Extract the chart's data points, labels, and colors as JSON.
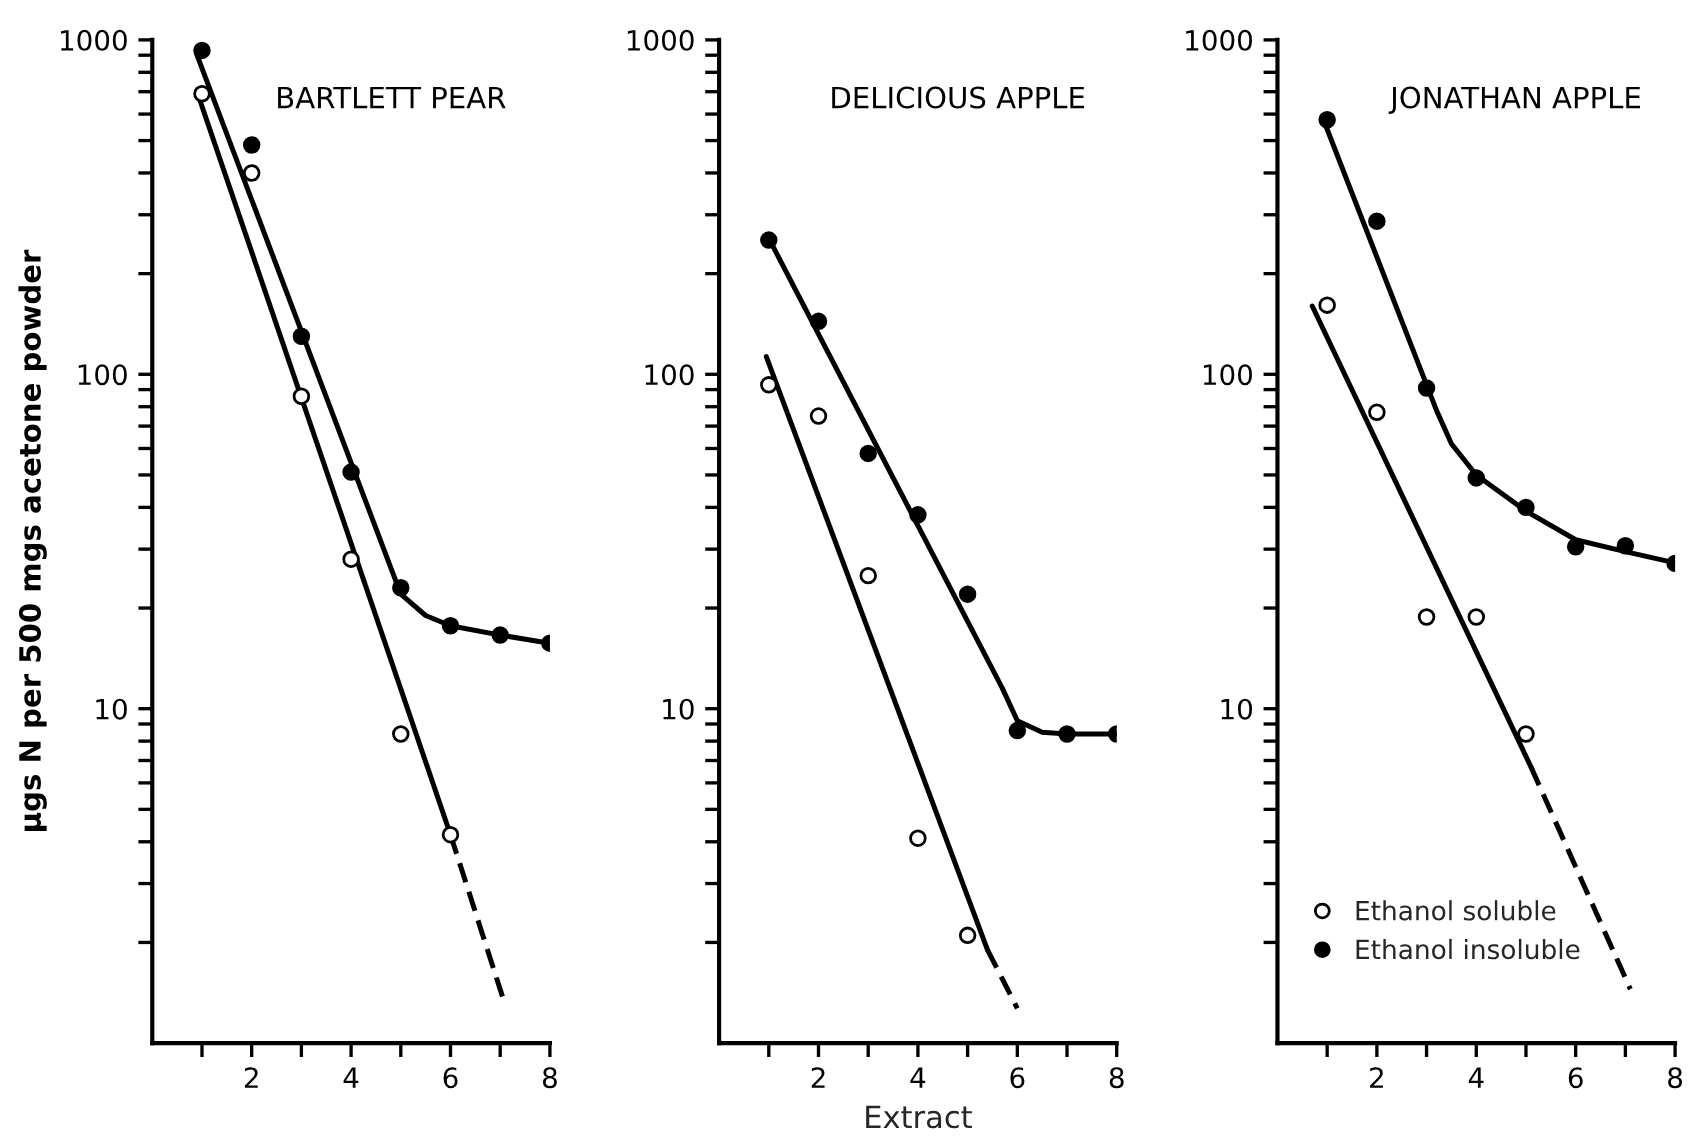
{
  "chart_data": [
    {
      "type": "scatter",
      "title": "BARTLETT PEAR",
      "ylabel": "μgs N per 500 mgs acetone powder",
      "log": "y",
      "xlim": [
        0,
        8
      ],
      "ylim": [
        1,
        1000
      ],
      "xticks": [
        {
          "value": 1,
          "label": null
        },
        2,
        {
          "value": 3,
          "label": null
        },
        4,
        {
          "value": 5,
          "label": null
        },
        6,
        {
          "value": 7,
          "label": null
        },
        8
      ],
      "yticks": [
        {
          "value": 2,
          "label": null
        },
        {
          "value": 3,
          "label": null
        },
        {
          "value": 4,
          "label": null
        },
        {
          "value": 5,
          "label": null
        },
        {
          "value": 6,
          "label": null
        },
        {
          "value": 7,
          "label": null
        },
        {
          "value": 8,
          "label": null
        },
        {
          "value": 9,
          "label": null
        },
        10,
        {
          "value": 20,
          "label": null
        },
        {
          "value": 30,
          "label": null
        },
        {
          "value": 40,
          "label": null
        },
        {
          "value": 50,
          "label": null
        },
        {
          "value": 60,
          "label": null
        },
        {
          "value": 70,
          "label": null
        },
        {
          "value": 80,
          "label": null
        },
        {
          "value": 90,
          "label": null
        },
        100,
        {
          "value": 200,
          "label": null
        },
        {
          "value": 300,
          "label": null
        },
        {
          "value": 400,
          "label": null
        },
        {
          "value": 500,
          "label": null
        },
        {
          "value": 600,
          "label": null
        },
        {
          "value": 700,
          "label": null
        },
        {
          "value": 800,
          "label": null
        },
        {
          "value": 900,
          "label": null
        },
        1000
      ],
      "grid": false,
      "legend": false,
      "series": [
        {
          "type": "line",
          "color": "#000000",
          "line_style": "solid",
          "marker": "none",
          "x": [
            0.9,
            5,
            5.5,
            6,
            7,
            8
          ],
          "values": [
            900,
            22,
            19,
            17.7,
            16.6,
            15.7
          ]
        },
        {
          "type": "line",
          "color": "#000000",
          "line_style": "solid",
          "marker": "none",
          "x": [
            0.9,
            6
          ],
          "values": [
            700,
            4.2
          ]
        },
        {
          "type": "line",
          "color": "#000000",
          "line_style": "dashed",
          "marker": "none",
          "x": [
            6,
            7.1
          ],
          "values": [
            4.2,
            1.3
          ]
        },
        {
          "color": "#ffffff",
          "marker": "circle",
          "x": [
            1,
            2,
            3,
            4,
            5,
            6
          ],
          "values": [
            690,
            400,
            86,
            28,
            8.4,
            4.2
          ]
        },
        {
          "color": "#000000",
          "marker": "circle",
          "x": [
            1,
            2,
            3,
            4,
            5,
            6,
            7,
            8
          ],
          "values": [
            930,
            485,
            130,
            51,
            23,
            17.7,
            16.6,
            15.7
          ]
        }
      ]
    },
    {
      "type": "scatter",
      "title": "DELICIOUS APPLE",
      "xlabel": "Extract",
      "log": "y",
      "xlim": [
        0,
        8
      ],
      "ylim": [
        1,
        1000
      ],
      "xticks": [
        {
          "value": 1,
          "label": null
        },
        2,
        {
          "value": 3,
          "label": null
        },
        4,
        {
          "value": 5,
          "label": null
        },
        6,
        {
          "value": 7,
          "label": null
        },
        8
      ],
      "yticks": [
        {
          "value": 2,
          "label": null
        },
        {
          "value": 3,
          "label": null
        },
        {
          "value": 4,
          "label": null
        },
        {
          "value": 5,
          "label": null
        },
        {
          "value": 6,
          "label": null
        },
        {
          "value": 7,
          "label": null
        },
        {
          "value": 8,
          "label": null
        },
        {
          "value": 9,
          "label": null
        },
        10,
        {
          "value": 20,
          "label": null
        },
        {
          "value": 30,
          "label": null
        },
        {
          "value": 40,
          "label": null
        },
        {
          "value": 50,
          "label": null
        },
        {
          "value": 60,
          "label": null
        },
        {
          "value": 70,
          "label": null
        },
        {
          "value": 80,
          "label": null
        },
        {
          "value": 90,
          "label": null
        },
        100,
        {
          "value": 200,
          "label": null
        },
        {
          "value": 300,
          "label": null
        },
        {
          "value": 400,
          "label": null
        },
        {
          "value": 500,
          "label": null
        },
        {
          "value": 600,
          "label": null
        },
        {
          "value": 700,
          "label": null
        },
        {
          "value": 800,
          "label": null
        },
        {
          "value": 900,
          "label": null
        },
        1000
      ],
      "grid": false,
      "legend": false,
      "series": [
        {
          "type": "line",
          "color": "#000000",
          "line_style": "solid",
          "marker": "none",
          "x": [
            1,
            5.7,
            6,
            6.5,
            7,
            8
          ],
          "values": [
            255,
            11.5,
            9.2,
            8.5,
            8.4,
            8.4
          ]
        },
        {
          "type": "line",
          "color": "#000000",
          "line_style": "solid",
          "marker": "none",
          "x": [
            0.95,
            5.4
          ],
          "values": [
            113,
            1.9
          ]
        },
        {
          "type": "line",
          "color": "#000000",
          "line_style": "dashed",
          "marker": "none",
          "x": [
            5.4,
            6
          ],
          "values": [
            1.9,
            1.27
          ]
        },
        {
          "color": "#ffffff",
          "marker": "circle",
          "x": [
            1,
            2,
            3,
            4,
            5
          ],
          "values": [
            93,
            75,
            25,
            4.1,
            2.1
          ]
        },
        {
          "color": "#000000",
          "marker": "circle",
          "x": [
            1,
            2,
            3,
            4,
            5,
            6,
            7,
            8
          ],
          "values": [
            252,
            144,
            58,
            38,
            22,
            8.6,
            8.4,
            8.4
          ]
        }
      ]
    },
    {
      "type": "scatter",
      "title": "JONATHAN APPLE",
      "log": "y",
      "xlim": [
        0,
        8
      ],
      "ylim": [
        1,
        1000
      ],
      "xticks": [
        {
          "value": 1,
          "label": null
        },
        2,
        {
          "value": 3,
          "label": null
        },
        4,
        {
          "value": 5,
          "label": null
        },
        6,
        {
          "value": 7,
          "label": null
        },
        8
      ],
      "yticks": [
        {
          "value": 2,
          "label": null
        },
        {
          "value": 3,
          "label": null
        },
        {
          "value": 4,
          "label": null
        },
        {
          "value": 5,
          "label": null
        },
        {
          "value": 6,
          "label": null
        },
        {
          "value": 7,
          "label": null
        },
        {
          "value": 8,
          "label": null
        },
        {
          "value": 9,
          "label": null
        },
        10,
        {
          "value": 20,
          "label": null
        },
        {
          "value": 30,
          "label": null
        },
        {
          "value": 40,
          "label": null
        },
        {
          "value": 50,
          "label": null
        },
        {
          "value": 60,
          "label": null
        },
        {
          "value": 70,
          "label": null
        },
        {
          "value": 80,
          "label": null
        },
        {
          "value": 90,
          "label": null
        },
        100,
        {
          "value": 200,
          "label": null
        },
        {
          "value": 300,
          "label": null
        },
        {
          "value": 400,
          "label": null
        },
        {
          "value": 500,
          "label": null
        },
        {
          "value": 600,
          "label": null
        },
        {
          "value": 700,
          "label": null
        },
        {
          "value": 800,
          "label": null
        },
        {
          "value": 900,
          "label": null
        },
        1000
      ],
      "grid": false,
      "legend": "bottom left",
      "series": [
        {
          "type": "line",
          "color": "#000000",
          "line_style": "solid",
          "marker": "none",
          "x": [
            0.9,
            3.2,
            3.5,
            4,
            5,
            6,
            7,
            8
          ],
          "values": [
            590,
            78,
            62,
            50,
            39,
            32,
            29.5,
            27.3
          ]
        },
        {
          "type": "line",
          "color": "#000000",
          "line_style": "solid",
          "marker": "none",
          "x": [
            0.7,
            5.1
          ],
          "values": [
            160,
            6.7
          ]
        },
        {
          "type": "line",
          "color": "#000000",
          "line_style": "dashed",
          "marker": "none",
          "x": [
            5.1,
            7.1
          ],
          "values": [
            6.7,
            1.45
          ]
        },
        {
          "name": "Ethanol soluble",
          "color": "#ffffff",
          "marker": "circle",
          "x": [
            1,
            2,
            3,
            4,
            5
          ],
          "values": [
            161,
            77,
            18.8,
            18.8,
            8.4
          ]
        },
        {
          "name": "Ethanol insoluble",
          "color": "#000000",
          "marker": "circle",
          "x": [
            1,
            2,
            3,
            4,
            5,
            6,
            7,
            8
          ],
          "values": [
            577,
            287,
            91,
            49,
            40,
            30.5,
            30.7,
            27.2
          ]
        }
      ]
    }
  ]
}
